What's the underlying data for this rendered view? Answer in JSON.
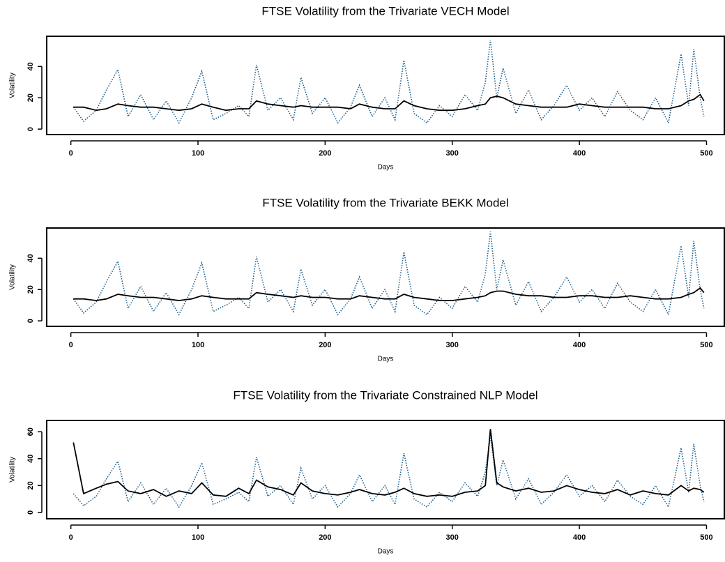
{
  "chart_data": [
    {
      "type": "line",
      "title": "FTSE Volatility from the Trivariate VECH Model",
      "xlabel": "Days",
      "ylabel": "Volatility",
      "x": [
        2,
        10,
        20,
        28,
        37,
        45,
        55,
        65,
        75,
        85,
        95,
        103,
        112,
        122,
        132,
        140,
        146,
        155,
        165,
        175,
        181,
        190,
        200,
        210,
        220,
        227,
        237,
        247,
        255,
        262,
        270,
        280,
        290,
        300,
        310,
        320,
        326,
        330,
        335,
        340,
        350,
        360,
        370,
        380,
        390,
        400,
        410,
        420,
        430,
        440,
        450,
        460,
        470,
        480,
        486,
        490,
        495,
        498
      ],
      "series": [
        {
          "color": "#1f5f8b",
          "style": "dotted",
          "values": [
            14,
            5,
            12,
            25,
            38,
            8,
            22,
            6,
            18,
            4,
            20,
            37,
            6,
            10,
            15,
            8,
            41,
            12,
            20,
            6,
            33,
            10,
            20,
            4,
            14,
            28,
            8,
            20,
            6,
            44,
            10,
            4,
            15,
            8,
            22,
            12,
            30,
            57,
            20,
            39,
            10,
            25,
            6,
            15,
            28,
            12,
            20,
            8,
            24,
            12,
            6,
            20,
            4,
            48,
            15,
            51,
            20,
            8
          ]
        },
        {
          "color": "#000000",
          "style": "solid",
          "values": [
            14,
            14,
            12,
            13,
            16,
            15,
            14,
            14,
            13,
            12,
            13,
            16,
            14,
            12,
            13,
            13,
            18,
            16,
            15,
            14,
            15,
            14,
            14,
            14,
            13,
            16,
            14,
            13,
            13,
            18,
            15,
            13,
            12,
            12,
            13,
            15,
            16,
            20,
            21,
            20,
            16,
            15,
            14,
            14,
            14,
            16,
            15,
            14,
            14,
            14,
            14,
            13,
            13,
            15,
            18,
            19,
            22,
            18
          ]
        }
      ],
      "xlim": [
        -19,
        514
      ],
      "ylim": [
        -3.5,
        59.3
      ],
      "xticks": [
        0,
        100,
        200,
        300,
        400,
        500
      ],
      "yticks": [
        0,
        20,
        40
      ]
    },
    {
      "type": "line",
      "title": "FTSE Volatility from the Trivariate BEKK Model",
      "xlabel": "Days",
      "ylabel": "Volatility",
      "x": [
        2,
        10,
        20,
        28,
        37,
        45,
        55,
        65,
        75,
        85,
        95,
        103,
        112,
        122,
        132,
        140,
        146,
        155,
        165,
        175,
        181,
        190,
        200,
        210,
        220,
        227,
        237,
        247,
        255,
        262,
        270,
        280,
        290,
        300,
        310,
        320,
        326,
        330,
        335,
        340,
        350,
        360,
        370,
        380,
        390,
        400,
        410,
        420,
        430,
        440,
        450,
        460,
        470,
        480,
        486,
        490,
        495,
        498
      ],
      "series": [
        {
          "color": "#1f5f8b",
          "style": "dotted",
          "values": [
            14,
            5,
            12,
            25,
            38,
            8,
            22,
            6,
            18,
            4,
            20,
            37,
            6,
            10,
            15,
            8,
            41,
            12,
            20,
            6,
            33,
            10,
            20,
            4,
            14,
            28,
            8,
            20,
            6,
            44,
            10,
            4,
            15,
            8,
            22,
            12,
            30,
            57,
            20,
            39,
            10,
            25,
            6,
            15,
            28,
            12,
            20,
            8,
            24,
            12,
            6,
            20,
            4,
            48,
            15,
            51,
            20,
            8
          ]
        },
        {
          "color": "#000000",
          "style": "solid",
          "values": [
            14,
            14,
            13,
            14,
            17,
            16,
            15,
            15,
            14,
            13,
            14,
            16,
            15,
            14,
            14,
            14,
            18,
            17,
            16,
            15,
            16,
            15,
            15,
            14,
            14,
            16,
            15,
            14,
            14,
            17,
            15,
            14,
            13,
            13,
            14,
            15,
            16,
            18,
            19,
            19,
            17,
            16,
            16,
            15,
            15,
            16,
            16,
            15,
            15,
            16,
            15,
            14,
            14,
            15,
            17,
            18,
            21,
            18
          ]
        }
      ],
      "xlim": [
        -19,
        514
      ],
      "ylim": [
        -3.5,
        59.3
      ],
      "xticks": [
        0,
        100,
        200,
        300,
        400,
        500
      ],
      "yticks": [
        0,
        20,
        40
      ]
    },
    {
      "type": "line",
      "title": "FTSE Volatility from the Trivariate Constrained NLP Model",
      "xlabel": "Days",
      "ylabel": "Volatility",
      "x": [
        2,
        10,
        20,
        28,
        37,
        45,
        55,
        65,
        75,
        85,
        95,
        103,
        112,
        122,
        132,
        140,
        146,
        155,
        165,
        175,
        181,
        190,
        200,
        210,
        220,
        227,
        237,
        247,
        255,
        262,
        270,
        280,
        290,
        300,
        310,
        320,
        326,
        330,
        335,
        340,
        350,
        360,
        370,
        380,
        390,
        400,
        410,
        420,
        430,
        440,
        450,
        460,
        470,
        480,
        486,
        490,
        495,
        498
      ],
      "series": [
        {
          "color": "#1f5f8b",
          "style": "dotted",
          "values": [
            14,
            5,
            12,
            25,
            38,
            8,
            22,
            6,
            18,
            4,
            20,
            37,
            6,
            10,
            15,
            8,
            41,
            12,
            20,
            6,
            33,
            10,
            20,
            4,
            14,
            28,
            8,
            20,
            6,
            44,
            10,
            4,
            15,
            8,
            22,
            12,
            30,
            57,
            20,
            39,
            10,
            25,
            6,
            15,
            28,
            12,
            20,
            8,
            24,
            12,
            6,
            20,
            4,
            48,
            15,
            51,
            20,
            8
          ]
        },
        {
          "color": "#000000",
          "style": "solid",
          "values": [
            52,
            14,
            18,
            21,
            23,
            16,
            14,
            17,
            12,
            16,
            14,
            22,
            13,
            12,
            18,
            14,
            24,
            19,
            17,
            13,
            22,
            16,
            14,
            13,
            15,
            17,
            14,
            13,
            15,
            18,
            14,
            12,
            13,
            12,
            15,
            16,
            20,
            62,
            22,
            19,
            16,
            18,
            15,
            16,
            20,
            17,
            15,
            14,
            17,
            13,
            16,
            14,
            13,
            20,
            16,
            18,
            17,
            15
          ]
        }
      ],
      "xlim": [
        -19,
        514
      ],
      "ylim": [
        -4.7,
        68.4
      ],
      "xticks": [
        0,
        100,
        200,
        300,
        400,
        500
      ],
      "yticks": [
        0,
        20,
        40,
        60
      ]
    }
  ]
}
